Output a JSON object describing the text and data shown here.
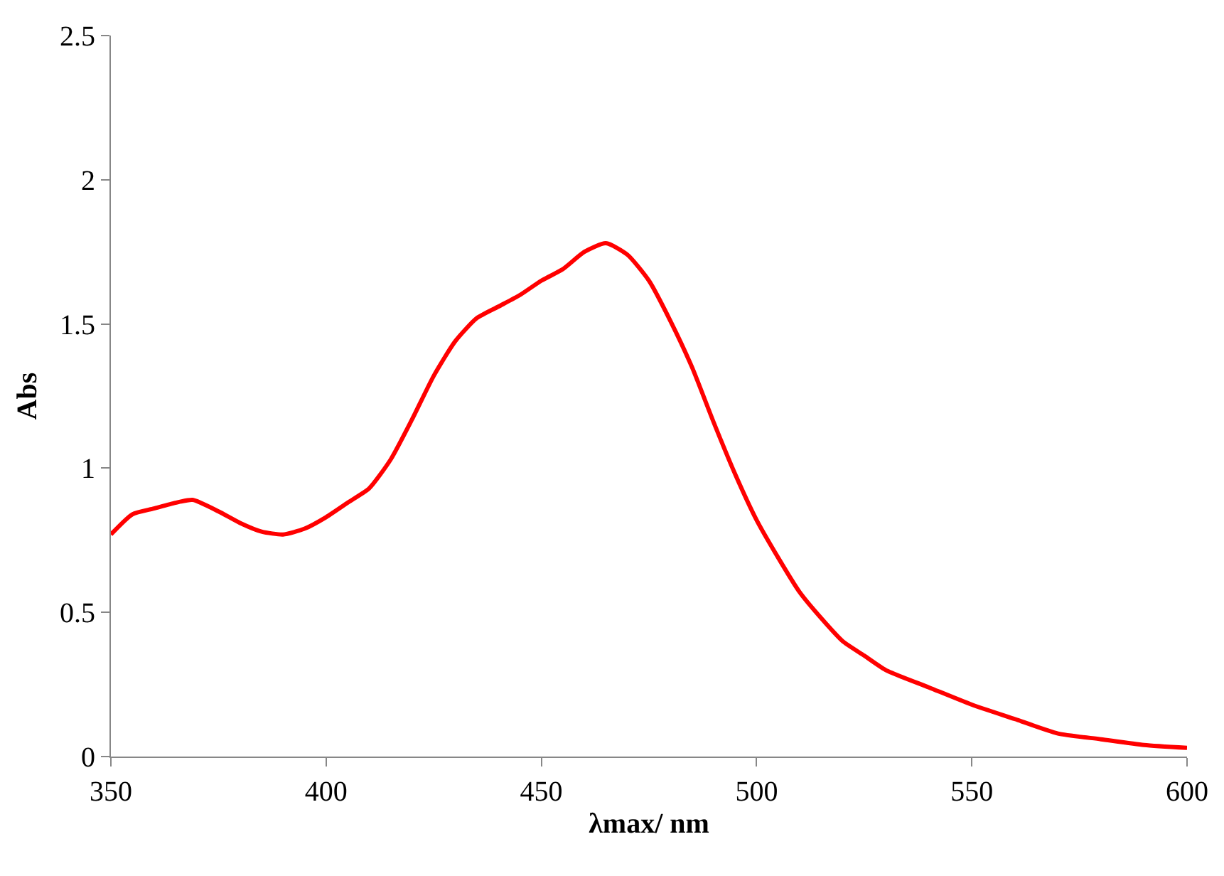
{
  "chart_data": {
    "type": "line",
    "xlabel": "λmax/ nm",
    "ylabel": "Abs",
    "xlim": [
      350,
      600
    ],
    "xticks": [
      350,
      400,
      450,
      500,
      550,
      600
    ],
    "ylim": [
      0,
      2.5
    ],
    "yticks": [
      0,
      0.5,
      1,
      1.5,
      2,
      2.5
    ],
    "legend": false,
    "marker": "none",
    "line_style": "solid",
    "series": [
      {
        "color": "#ff0000",
        "x": [
          350,
          355,
          360,
          365,
          369,
          375,
          380,
          385,
          390,
          395,
          400,
          405,
          410,
          415,
          420,
          425,
          430,
          435,
          440,
          445,
          450,
          455,
          460,
          465,
          470,
          475,
          480,
          485,
          490,
          495,
          500,
          505,
          510,
          515,
          520,
          525,
          530,
          540,
          550,
          560,
          570,
          580,
          590,
          600
        ],
        "values": [
          0.77,
          0.84,
          0.86,
          0.88,
          0.89,
          0.85,
          0.81,
          0.78,
          0.77,
          0.79,
          0.83,
          0.88,
          0.93,
          1.03,
          1.17,
          1.32,
          1.44,
          1.52,
          1.56,
          1.6,
          1.65,
          1.69,
          1.75,
          1.78,
          1.74,
          1.65,
          1.51,
          1.35,
          1.16,
          0.98,
          0.82,
          0.69,
          0.57,
          0.48,
          0.4,
          0.35,
          0.3,
          0.24,
          0.18,
          0.13,
          0.08,
          0.06,
          0.04,
          0.03
        ]
      }
    ]
  }
}
